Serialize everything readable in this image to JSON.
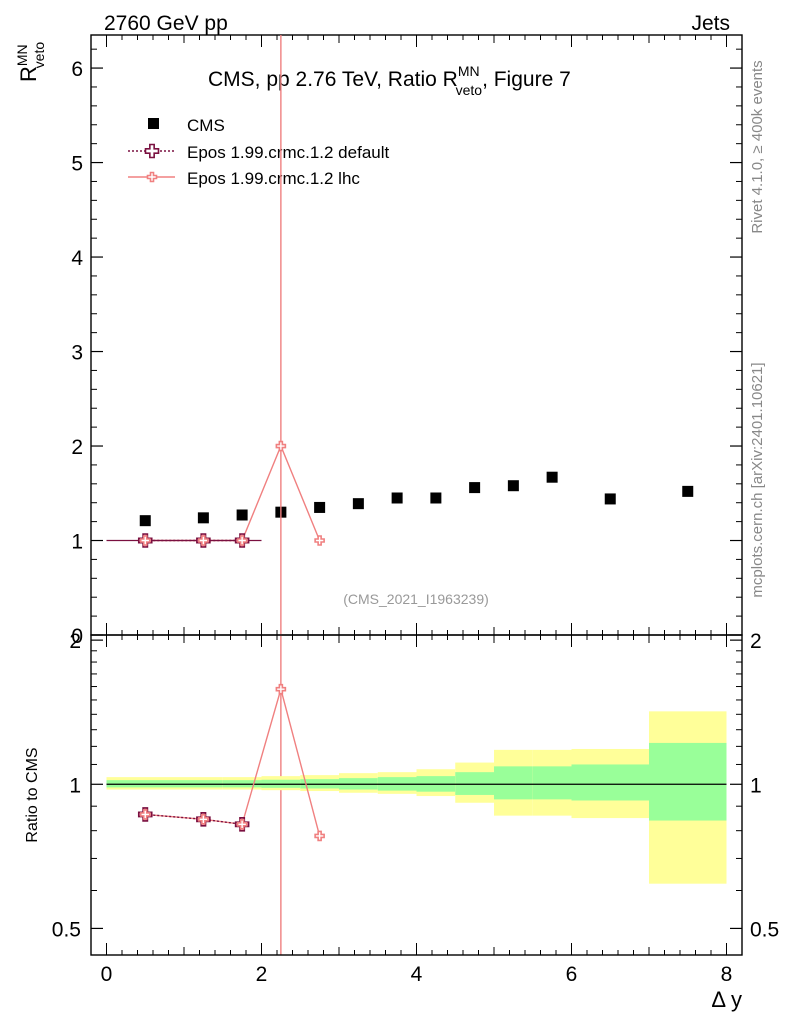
{
  "header": {
    "left": "2760 GeV pp",
    "right": "Jets"
  },
  "side_labels": {
    "rivet": "Rivet 4.1.0, ≥ 400k events",
    "mcplots": "mcplots.cern.ch [arXiv:2401.10621]"
  },
  "chart_data": [
    {
      "panel": "main",
      "type": "scatter",
      "title_parts": {
        "prefix": "CMS, pp 2.76 TeV, Ratio R",
        "sup": "MN",
        "sub": "veto",
        "suffix": ", Figure 7"
      },
      "ylabel": {
        "base": "R",
        "sup": "MN",
        "sub": "veto"
      },
      "analysis_tag": "(CMS_2021_I1963239)",
      "ylim": [
        0,
        6.35
      ],
      "xlim": [
        -0.2,
        8.2
      ],
      "yticks": [
        "0",
        "1",
        "2",
        "3",
        "4",
        "5",
        "6"
      ],
      "legend": [
        "CMS",
        "Epos 1.99.crmc.1.2 default",
        "Epos 1.99.crmc.1.2 lhc"
      ],
      "series": [
        {
          "name": "CMS",
          "style": "data",
          "color": "#000000",
          "x": [
            0.5,
            1.25,
            1.75,
            2.25,
            2.75,
            3.25,
            3.75,
            4.25,
            4.75,
            5.25,
            5.75,
            6.5,
            7.5
          ],
          "xerr": [
            0.5,
            0.25,
            0.25,
            0.25,
            0.25,
            0.25,
            0.25,
            0.25,
            0.25,
            0.25,
            0.25,
            0.5,
            0.5
          ],
          "y": [
            1.21,
            1.24,
            1.27,
            1.3,
            1.35,
            1.39,
            1.45,
            1.45,
            1.56,
            1.58,
            1.67,
            1.44,
            1.52
          ]
        },
        {
          "name": "Epos 1.99.crmc.1.2 default",
          "style": "default",
          "color": "#7a1040",
          "x": [
            0.5,
            1.25,
            1.75
          ],
          "y": [
            1.0,
            1.0,
            1.0
          ]
        },
        {
          "name": "Epos 1.99.crmc.1.2 lhc",
          "style": "lhc",
          "color": "#f08080",
          "x": [
            0.5,
            1.25,
            1.75,
            2.25,
            2.75
          ],
          "y": [
            1.0,
            1.0,
            1.0,
            2.0,
            1.0
          ],
          "vertical_line_x": 2.25
        }
      ]
    },
    {
      "panel": "ratio",
      "type": "band+line",
      "ylabel": "Ratio to CMS",
      "xlabel": "Δ y",
      "ylim": [
        0.44,
        2.05
      ],
      "yscale": "log",
      "xlim": [
        -0.2,
        8.2
      ],
      "xticks": [
        "0",
        "2",
        "4",
        "6",
        "8"
      ],
      "yticks": [
        "0.5",
        "1",
        "2"
      ],
      "bands": {
        "edges": [
          0,
          1,
          1.5,
          2,
          2.5,
          3,
          3.5,
          4,
          4.5,
          5,
          5.5,
          6,
          7,
          8
        ],
        "inner": [
          [
            0.985,
            1.02
          ],
          [
            0.985,
            1.02
          ],
          [
            0.985,
            1.02
          ],
          [
            0.983,
            1.022
          ],
          [
            0.98,
            1.025
          ],
          [
            0.975,
            1.03
          ],
          [
            0.97,
            1.035
          ],
          [
            0.965,
            1.04
          ],
          [
            0.95,
            1.06
          ],
          [
            0.93,
            1.09
          ],
          [
            0.93,
            1.09
          ],
          [
            0.925,
            1.1
          ],
          [
            0.84,
            1.22
          ]
        ],
        "outer": [
          [
            0.975,
            1.035
          ],
          [
            0.975,
            1.035
          ],
          [
            0.975,
            1.035
          ],
          [
            0.972,
            1.04
          ],
          [
            0.968,
            1.045
          ],
          [
            0.96,
            1.055
          ],
          [
            0.955,
            1.06
          ],
          [
            0.945,
            1.075
          ],
          [
            0.915,
            1.11
          ],
          [
            0.86,
            1.18
          ],
          [
            0.86,
            1.18
          ],
          [
            0.85,
            1.185
          ],
          [
            0.62,
            1.42
          ]
        ]
      },
      "series": [
        {
          "name": "Epos 1.99.crmc.1.2 default",
          "style": "default",
          "color": "#7a1040",
          "x": [
            0.5,
            1.25,
            1.75
          ],
          "y": [
            0.865,
            0.845,
            0.825
          ]
        },
        {
          "name": "Epos 1.99.crmc.1.2 lhc",
          "style": "lhc",
          "color": "#f08080",
          "x": [
            0.5,
            1.25,
            1.75,
            2.25,
            2.75
          ],
          "y": [
            0.865,
            0.845,
            0.825,
            1.58,
            0.78
          ],
          "vertical_line_x": 2.25
        }
      ]
    }
  ]
}
